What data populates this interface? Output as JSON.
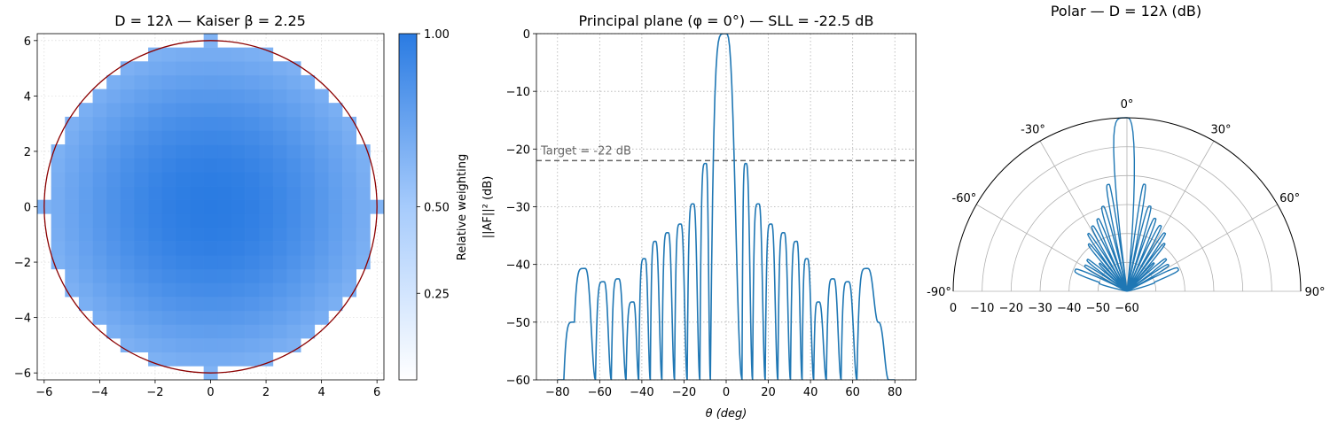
{
  "colors": {
    "aperture_circle": "#8b0000",
    "cmap_low": "#ffffff",
    "cmap_high": "#2a7be2",
    "pattern_line": "#1f77b4",
    "target_line": "#666666",
    "polar_grid": "#b0b0b0"
  },
  "chart_data": [
    {
      "type": "heatmap",
      "title": "D = 12λ — Kaiser β = 2.25",
      "xlabel": "",
      "ylabel": "",
      "xlim": [
        -6.25,
        6.25
      ],
      "ylim": [
        -6.25,
        6.25
      ],
      "xticks": [
        -6,
        -4,
        -2,
        0,
        2,
        4,
        6
      ],
      "yticks": [
        -6,
        -4,
        -2,
        0,
        2,
        4,
        6
      ],
      "xtick_labels": [
        "−6",
        "−4",
        "−2",
        "0",
        "2",
        "4",
        "6"
      ],
      "ytick_labels": [
        "−6",
        "−4",
        "−2",
        "0",
        "2",
        "4",
        "6"
      ],
      "grid": true,
      "cell_pitch": 0.5,
      "aperture_radius": 6,
      "kaiser_beta": 2.25,
      "colorbar": {
        "label": "Relative weighting",
        "range": [
          0,
          1
        ],
        "ticks": [
          0.25,
          0.5,
          1.0
        ],
        "tick_labels": [
          "0.25",
          "0.50",
          "1.00"
        ]
      }
    },
    {
      "type": "line",
      "title": "Principal plane (φ = 0°) — SLL = -22.5 dB",
      "xlabel": "θ (deg)",
      "ylabel": "||AF||² (dB)",
      "xlim": [
        -90,
        90
      ],
      "ylim": [
        -60,
        0
      ],
      "xticks": [
        -80,
        -60,
        -40,
        -20,
        0,
        20,
        40,
        60,
        80
      ],
      "yticks": [
        0,
        -10,
        -20,
        -30,
        -40,
        -50,
        -60
      ],
      "xtick_labels": [
        "−80",
        "−60",
        "−40",
        "−20",
        "0",
        "20",
        "40",
        "60",
        "80"
      ],
      "ytick_labels": [
        "0",
        "−10",
        "−20",
        "−30",
        "−40",
        "−50",
        "−60"
      ],
      "grid": true,
      "sll_db": -22.5,
      "target": {
        "value": -22,
        "label": "Target = -22 dB"
      },
      "series": [
        {
          "x": [
            0,
            7.5,
            9.5,
            12.5,
            15.5,
            18.5,
            21.5,
            24.5,
            27.5,
            30.5,
            33.5,
            36,
            38.5,
            41.5,
            44,
            47.5,
            51,
            54.5,
            58,
            62,
            67,
            72,
            77,
            80
          ],
          "y": [
            0,
            -60,
            -22.5,
            -60,
            -29.5,
            -60,
            -33,
            -60,
            -34.5,
            -60,
            -36,
            -60,
            -39,
            -60,
            -46.5,
            -60,
            -42.5,
            -60,
            -43,
            -60,
            -40.7,
            -50,
            -60,
            -60
          ],
          "symmetric": true
        }
      ]
    },
    {
      "type": "line",
      "title": "Polar — D = 12λ (dB)",
      "projection": "polar",
      "theta_range_deg": [
        -90,
        90
      ],
      "r_range_db": [
        -60,
        0
      ],
      "angle_ticks": [
        -90,
        -60,
        -30,
        0,
        30,
        60,
        90
      ],
      "angle_labels": [
        "-90°",
        "-60°",
        "-30°",
        "0°",
        "30°",
        "60°",
        "90°"
      ],
      "r_ticks": [
        0,
        -10,
        -20,
        -30,
        -40,
        -50,
        -60
      ],
      "r_labels": [
        "0",
        "−10",
        "−20",
        "−30",
        "−40",
        "−50",
        "−60"
      ],
      "grid": true
    }
  ]
}
